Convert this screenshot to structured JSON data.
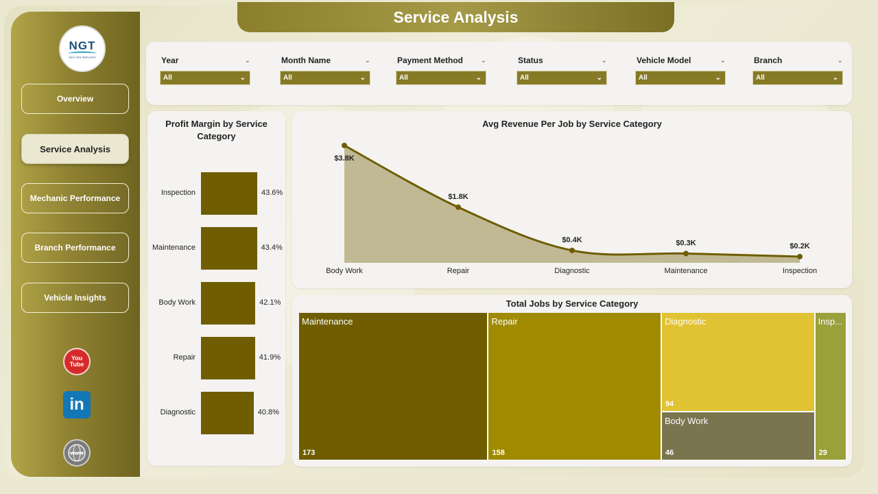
{
  "header": {
    "title": "Service Analysis"
  },
  "sidebar": {
    "logo": {
      "main": "NGT",
      "sub": "NEXT GEN TEMPLATES"
    },
    "items": [
      {
        "label": "Overview",
        "active": false
      },
      {
        "label": "Service Analysis",
        "active": true
      },
      {
        "label": "Mechanic Performance",
        "active": false
      },
      {
        "label": "Branch Performance",
        "active": false
      },
      {
        "label": "Vehicle Insights",
        "active": false
      }
    ],
    "social": [
      {
        "icon": "youtube-icon",
        "text": "You Tube"
      },
      {
        "icon": "linkedin-icon",
        "text": "in"
      },
      {
        "icon": "globe-www-icon",
        "text": "www"
      }
    ]
  },
  "filters": [
    {
      "label": "Year",
      "value": "All"
    },
    {
      "label": "Month Name",
      "value": "All"
    },
    {
      "label": "Payment Method",
      "value": "All"
    },
    {
      "label": "Status",
      "value": "All"
    },
    {
      "label": "Vehicle Model",
      "value": "All"
    },
    {
      "label": "Branch",
      "value": "All"
    }
  ],
  "colors": {
    "accent": "#877a26",
    "bar": "#6f5d00",
    "line": "#6f5d00",
    "area": "#c0b994"
  },
  "chart_data": [
    {
      "type": "bar",
      "orientation": "horizontal",
      "title": "Profit Margin by Service Category",
      "categories": [
        "Inspection",
        "Maintenance",
        "Body Work",
        "Repair",
        "Diagnostic"
      ],
      "values": [
        43.6,
        43.4,
        42.1,
        41.9,
        40.8
      ],
      "value_labels": [
        "43.6%",
        "43.4%",
        "42.1%",
        "41.9%",
        "40.8%"
      ]
    },
    {
      "type": "area",
      "title": "Avg Revenue Per Job by Service Category",
      "categories": [
        "Body Work",
        "Repair",
        "Diagnostic",
        "Maintenance",
        "Inspection"
      ],
      "values": [
        3.8,
        1.8,
        0.4,
        0.3,
        0.2
      ],
      "value_labels": [
        "$3.8K",
        "$1.8K",
        "$0.4K",
        "$0.3K",
        "$0.2K"
      ]
    },
    {
      "type": "treemap",
      "title": "Total Jobs by Service Category",
      "items": [
        {
          "label": "Maintenance",
          "value": 173,
          "value_label": "173",
          "color": "#6f5d00"
        },
        {
          "label": "Repair",
          "value": 158,
          "value_label": "158",
          "color": "#a08b00"
        },
        {
          "label": "Diagnostic",
          "value": 94,
          "value_label": "94",
          "color": "#e0c232"
        },
        {
          "label": "Body Work",
          "value": 46,
          "value_label": "46",
          "color": "#7a744f"
        },
        {
          "label": "Insp...",
          "value": 29,
          "value_label": "29",
          "color": "#9aa03a"
        }
      ]
    }
  ]
}
